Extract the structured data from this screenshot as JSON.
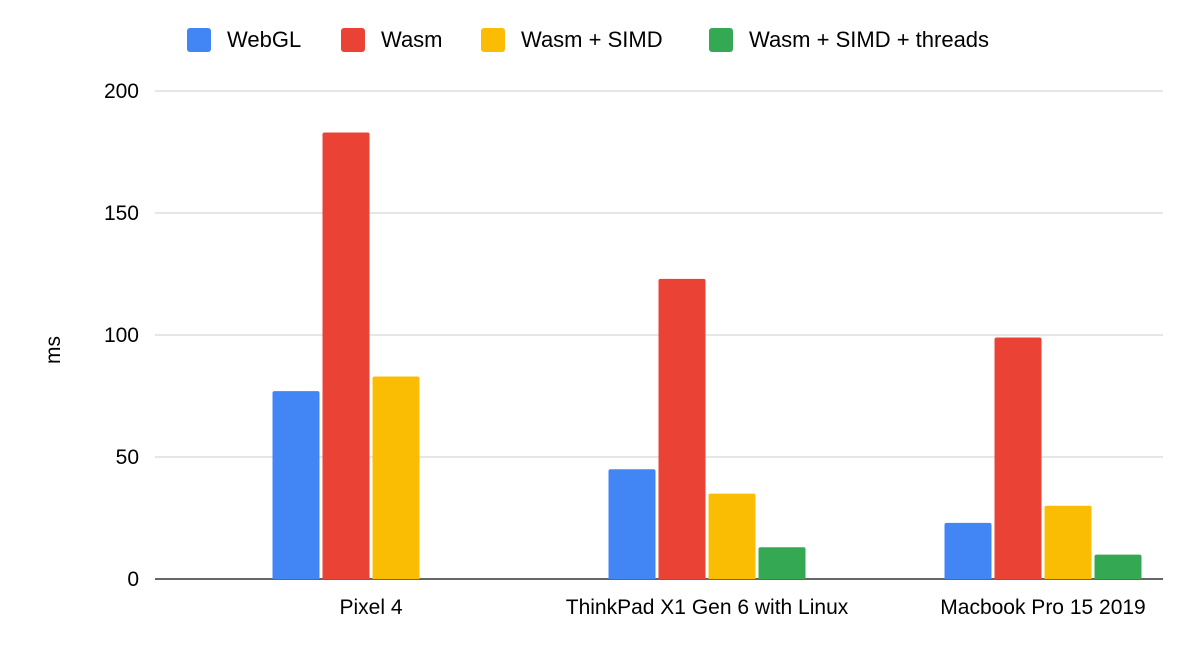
{
  "chart_data": {
    "type": "bar",
    "categories": [
      "Pixel 4",
      "ThinkPad X1 Gen 6 with Linux",
      "Macbook Pro 15 2019"
    ],
    "series": [
      {
        "name": "WebGL",
        "color": "#4285f4",
        "values": [
          77,
          45,
          23
        ]
      },
      {
        "name": "Wasm",
        "color": "#ea4335",
        "values": [
          183,
          123,
          99
        ]
      },
      {
        "name": "Wasm + SIMD",
        "color": "#fbbc04",
        "values": [
          83,
          35,
          30
        ]
      },
      {
        "name": "Wasm + SIMD + threads",
        "color": "#34a853",
        "values": [
          null,
          13,
          10
        ]
      }
    ],
    "ylabel": "ms",
    "xlabel": "",
    "ylim": [
      0,
      200
    ],
    "yticks": [
      0,
      50,
      100,
      150,
      200
    ],
    "grid": true,
    "legend_position": "top"
  }
}
